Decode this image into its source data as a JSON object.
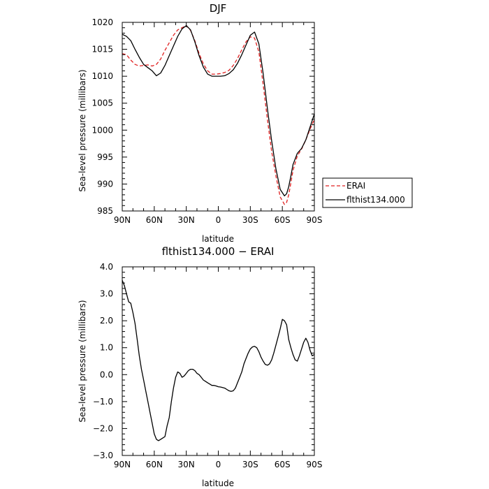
{
  "chart_data": [
    {
      "type": "line",
      "title": "DJF",
      "xlabel": "latitude",
      "ylabel": "Sea-level pressure (millibars)",
      "xlim": [
        90,
        -90
      ],
      "ylim": [
        985,
        1020
      ],
      "x_ticks": [
        90,
        60,
        30,
        0,
        -30,
        -60,
        -90
      ],
      "x_tick_labels": [
        "90N",
        "60N",
        "30N",
        "0",
        "30S",
        "60S",
        "90S"
      ],
      "y_ticks": [
        985,
        990,
        995,
        1000,
        1005,
        1010,
        1015,
        1020
      ],
      "y_tick_labels": [
        "985",
        "990",
        "995",
        "1000",
        "1005",
        "1010",
        "1015",
        "1020"
      ],
      "legend_position": "outside-right",
      "series": [
        {
          "name": "ERAI",
          "color": "#e02020",
          "dash": "dashed",
          "x": [
            90,
            86,
            82,
            78,
            74,
            70,
            66,
            62,
            58,
            54,
            50,
            46,
            42,
            38,
            34,
            30,
            26,
            22,
            18,
            14,
            10,
            6,
            2,
            -2,
            -6,
            -10,
            -14,
            -18,
            -22,
            -26,
            -30,
            -34,
            -38,
            -42,
            -46,
            -50,
            -54,
            -58,
            -62,
            -64,
            -66,
            -68,
            -70,
            -74,
            -78,
            -82,
            -86,
            -90
          ],
          "values": [
            1014.2,
            1014.0,
            1013.0,
            1012.2,
            1011.9,
            1012.0,
            1012.1,
            1011.9,
            1012.2,
            1013.2,
            1014.8,
            1016.2,
            1017.6,
            1018.6,
            1019.0,
            1019.4,
            1018.5,
            1016.6,
            1014.2,
            1012.3,
            1011.0,
            1010.4,
            1010.4,
            1010.5,
            1010.7,
            1011.1,
            1012.0,
            1013.3,
            1014.9,
            1016.4,
            1017.3,
            1017.1,
            1014.5,
            1008.5,
            1002.0,
            996.0,
            991.5,
            987.6,
            986.2,
            986.6,
            988.0,
            990.2,
            992.5,
            995.2,
            996.5,
            998.2,
            1000.2,
            1002.0
          ]
        },
        {
          "name": "flthist134.000",
          "color": "#000000",
          "dash": "solid",
          "x": [
            90,
            86,
            82,
            78,
            74,
            70,
            66,
            62,
            58,
            54,
            50,
            46,
            42,
            38,
            34,
            30,
            26,
            22,
            18,
            14,
            10,
            6,
            2,
            -2,
            -6,
            -10,
            -14,
            -18,
            -22,
            -26,
            -30,
            -34,
            -38,
            -42,
            -46,
            -50,
            -54,
            -58,
            -62,
            -64,
            -66,
            -68,
            -70,
            -74,
            -78,
            -82,
            -86,
            -90
          ],
          "values": [
            1017.8,
            1017.4,
            1016.6,
            1015.0,
            1013.5,
            1012.2,
            1011.6,
            1011.0,
            1010.1,
            1010.6,
            1012.0,
            1013.8,
            1015.6,
            1017.4,
            1018.8,
            1019.4,
            1018.6,
            1016.4,
            1013.8,
            1011.7,
            1010.4,
            1010.0,
            1010.0,
            1010.0,
            1010.1,
            1010.5,
            1011.2,
            1012.4,
            1014.0,
            1015.8,
            1017.6,
            1018.2,
            1016.0,
            1010.5,
            1004.0,
            998.0,
            992.8,
            989.0,
            987.8,
            988.2,
            989.5,
            991.5,
            993.6,
            995.7,
            996.6,
            998.2,
            1000.6,
            1003.0
          ]
        }
      ]
    },
    {
      "type": "line",
      "title": "flthist134.000 − ERAI",
      "xlabel": "latitude",
      "ylabel": "Sea-level pressure (millibars)",
      "xlim": [
        90,
        -90
      ],
      "ylim": [
        -3.0,
        4.0
      ],
      "x_ticks": [
        90,
        60,
        30,
        0,
        -30,
        -60,
        -90
      ],
      "x_tick_labels": [
        "90N",
        "60N",
        "30N",
        "0",
        "30S",
        "60S",
        "90S"
      ],
      "y_ticks": [
        -3.0,
        -2.0,
        -1.0,
        0.0,
        1.0,
        2.0,
        3.0,
        4.0
      ],
      "y_tick_labels": [
        "−3.0",
        "−2.0",
        "−1.0",
        "0.0",
        "1.0",
        "2.0",
        "3.0",
        "4.0"
      ],
      "series": [
        {
          "color": "#000000",
          "dash": "solid",
          "x": [
            90,
            88,
            86,
            84,
            82,
            80,
            78,
            76,
            74,
            72,
            70,
            68,
            66,
            64,
            62,
            60,
            58,
            56,
            54,
            52,
            50,
            48,
            46,
            44,
            42,
            40,
            38,
            36,
            34,
            32,
            30,
            28,
            26,
            24,
            22,
            20,
            18,
            16,
            14,
            12,
            10,
            8,
            6,
            4,
            2,
            0,
            -2,
            -4,
            -6,
            -8,
            -10,
            -12,
            -14,
            -16,
            -18,
            -20,
            -22,
            -24,
            -26,
            -28,
            -30,
            -32,
            -34,
            -36,
            -38,
            -40,
            -42,
            -44,
            -46,
            -48,
            -50,
            -52,
            -54,
            -56,
            -58,
            -60,
            -62,
            -64,
            -66,
            -68,
            -70,
            -72,
            -74,
            -76,
            -78,
            -80,
            -82,
            -84,
            -86,
            -88,
            -90
          ],
          "values": [
            3.5,
            3.3,
            3.0,
            2.7,
            2.65,
            2.3,
            1.9,
            1.3,
            0.7,
            0.2,
            -0.2,
            -0.6,
            -1.0,
            -1.4,
            -1.8,
            -2.2,
            -2.4,
            -2.45,
            -2.4,
            -2.35,
            -2.3,
            -1.9,
            -1.6,
            -1.0,
            -0.5,
            -0.1,
            0.1,
            0.05,
            -0.1,
            -0.05,
            0.05,
            0.15,
            0.2,
            0.2,
            0.15,
            0.05,
            0.0,
            -0.1,
            -0.2,
            -0.25,
            -0.3,
            -0.35,
            -0.4,
            -0.4,
            -0.42,
            -0.45,
            -0.46,
            -0.48,
            -0.5,
            -0.55,
            -0.6,
            -0.62,
            -0.6,
            -0.5,
            -0.3,
            -0.1,
            0.1,
            0.4,
            0.6,
            0.8,
            0.95,
            1.03,
            1.05,
            1.0,
            0.85,
            0.65,
            0.5,
            0.38,
            0.35,
            0.4,
            0.55,
            0.8,
            1.1,
            1.4,
            1.7,
            2.05,
            2.0,
            1.85,
            1.3,
            1.0,
            0.75,
            0.55,
            0.5,
            0.7,
            0.95,
            1.2,
            1.35,
            1.2,
            0.9,
            0.7,
            0.75
          ]
        }
      ]
    }
  ]
}
